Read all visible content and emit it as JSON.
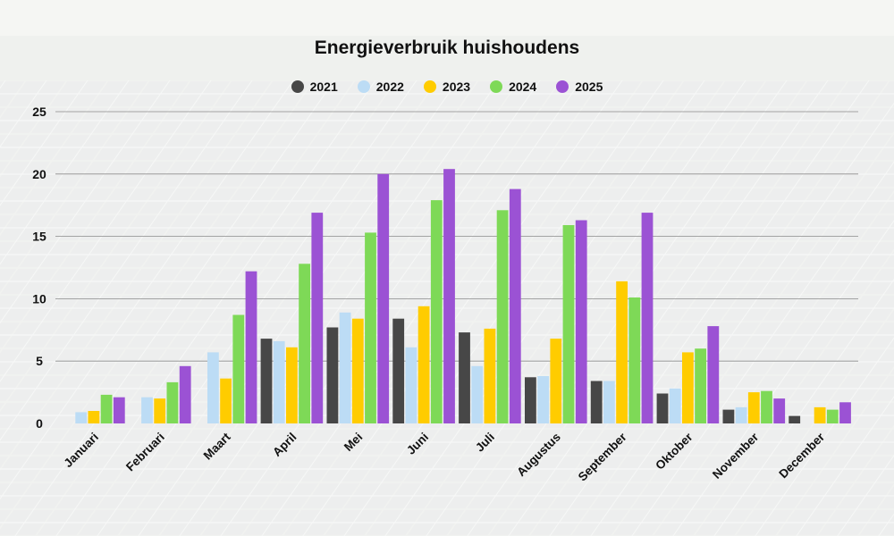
{
  "chart_data": {
    "type": "bar",
    "title": "Energieverbruik huishoudens",
    "xlabel": "",
    "ylabel": "",
    "ylim": [
      0,
      25
    ],
    "yticks": [
      0,
      5,
      10,
      15,
      20,
      25
    ],
    "grid": true,
    "legend_position": "top-center",
    "categories": [
      "Januari",
      "Februari",
      "Maart",
      "April",
      "Mei",
      "Juni",
      "Juli",
      "Augustus",
      "September",
      "Oktober",
      "November",
      "December"
    ],
    "series": [
      {
        "name": "2021",
        "color": "#474747",
        "values": [
          0,
          0,
          0,
          6.8,
          7.7,
          8.4,
          7.3,
          3.7,
          3.4,
          2.4,
          1.1,
          0.6
        ]
      },
      {
        "name": "2022",
        "color": "#bcdcf5",
        "values": [
          0.9,
          2.1,
          5.7,
          6.6,
          8.9,
          6.1,
          4.6,
          3.8,
          3.4,
          2.8,
          1.3,
          0
        ]
      },
      {
        "name": "2023",
        "color": "#ffcc00",
        "values": [
          1.0,
          2.0,
          3.6,
          6.1,
          8.4,
          9.4,
          7.6,
          6.8,
          11.4,
          5.7,
          2.5,
          1.3
        ]
      },
      {
        "name": "2024",
        "color": "#7ed957",
        "values": [
          2.3,
          3.3,
          8.7,
          12.8,
          15.3,
          17.9,
          17.1,
          15.9,
          10.1,
          6.0,
          2.6,
          1.1
        ]
      },
      {
        "name": "2025",
        "color": "#9b52d4",
        "values": [
          2.1,
          4.6,
          12.2,
          16.9,
          20.0,
          20.4,
          18.8,
          16.3,
          16.9,
          7.8,
          2.0,
          1.7
        ]
      }
    ]
  }
}
